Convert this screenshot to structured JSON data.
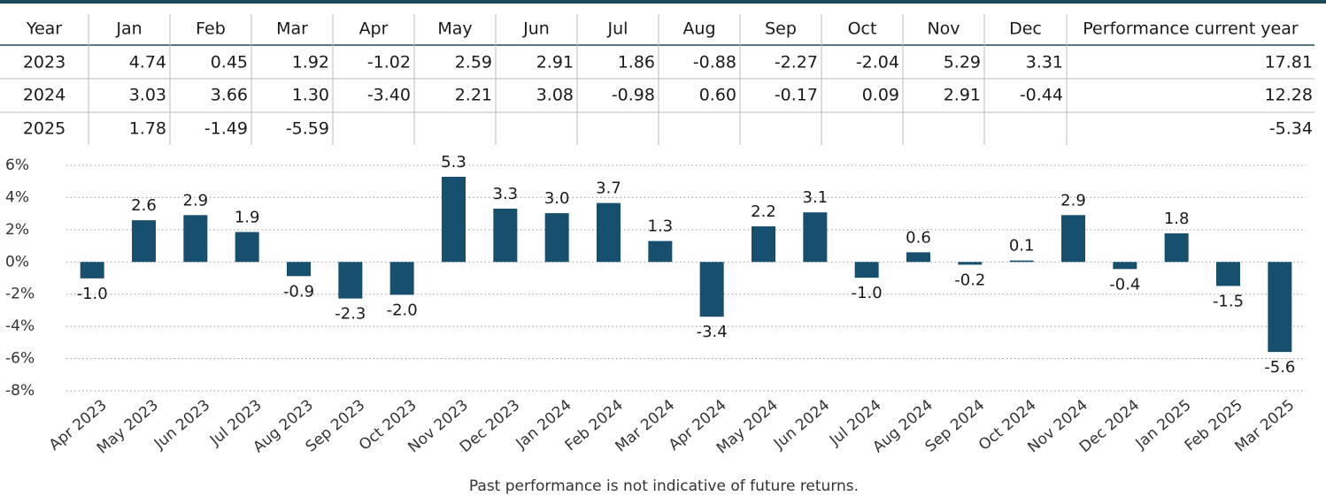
{
  "table": {
    "header": [
      "Year",
      "Jan",
      "Feb",
      "Mar",
      "Apr",
      "May",
      "Jun",
      "Jul",
      "Aug",
      "Sep",
      "Oct",
      "Nov",
      "Dec",
      "Performance current year"
    ],
    "rows": [
      {
        "year": "2023",
        "months": [
          "4.74",
          "0.45",
          "1.92",
          "-1.02",
          "2.59",
          "2.91",
          "1.86",
          "-0.88",
          "-2.27",
          "-2.04",
          "5.29",
          "3.31"
        ],
        "total": "17.81"
      },
      {
        "year": "2024",
        "months": [
          "3.03",
          "3.66",
          "1.30",
          "-3.40",
          "2.21",
          "3.08",
          "-0.98",
          "0.60",
          "-0.17",
          "0.09",
          "2.91",
          "-0.44"
        ],
        "total": "12.28"
      },
      {
        "year": "2025",
        "months": [
          "1.78",
          "-1.49",
          "-5.59"
        ],
        "total": "-5.34"
      }
    ]
  },
  "chart_data": {
    "type": "bar",
    "categories": [
      "Apr 2023",
      "May 2023",
      "Jun 2023",
      "Jul 2023",
      "Aug 2023",
      "Sep 2023",
      "Oct 2023",
      "Nov 2023",
      "Dec 2023",
      "Jan 2024",
      "Feb 2024",
      "Mar 2024",
      "Apr 2024",
      "May 2024",
      "Jun 2024",
      "Jul 2024",
      "Aug 2024",
      "Sep 2024",
      "Oct 2024",
      "Nov 2024",
      "Dec 2024",
      "Jan 2025",
      "Feb 2025",
      "Mar 2025"
    ],
    "values": [
      -1.02,
      2.59,
      2.91,
      1.86,
      -0.88,
      -2.27,
      -2.04,
      5.29,
      3.31,
      3.03,
      3.66,
      1.3,
      -3.4,
      2.21,
      3.08,
      -0.98,
      0.6,
      -0.17,
      0.09,
      2.91,
      -0.44,
      1.78,
      -1.49,
      -5.59
    ],
    "value_labels": [
      "-1.0",
      "2.6",
      "2.9",
      "1.9",
      "-0.9",
      "-2.3",
      "-2.0",
      "5.3",
      "3.3",
      "3.0",
      "3.7",
      "1.3",
      "-3.4",
      "2.2",
      "3.1",
      "-1.0",
      "0.6",
      "-0.2",
      "0.1",
      "2.9",
      "-0.4",
      "1.8",
      "-1.5",
      "-5.6"
    ],
    "color": "#17506e",
    "ylim": [
      -8,
      6
    ],
    "yticks": [
      {
        "value": 6,
        "label": "6%"
      },
      {
        "value": 4,
        "label": "4%"
      },
      {
        "value": 2,
        "label": "2%"
      },
      {
        "value": 0,
        "label": "0%"
      },
      {
        "value": -2,
        "label": "-2%"
      },
      {
        "value": -4,
        "label": "-4%"
      },
      {
        "value": -6,
        "label": "-6%"
      },
      {
        "value": -8,
        "label": "-8%"
      }
    ],
    "grid": true,
    "footnote": "Past performance is not indicative of future returns."
  }
}
